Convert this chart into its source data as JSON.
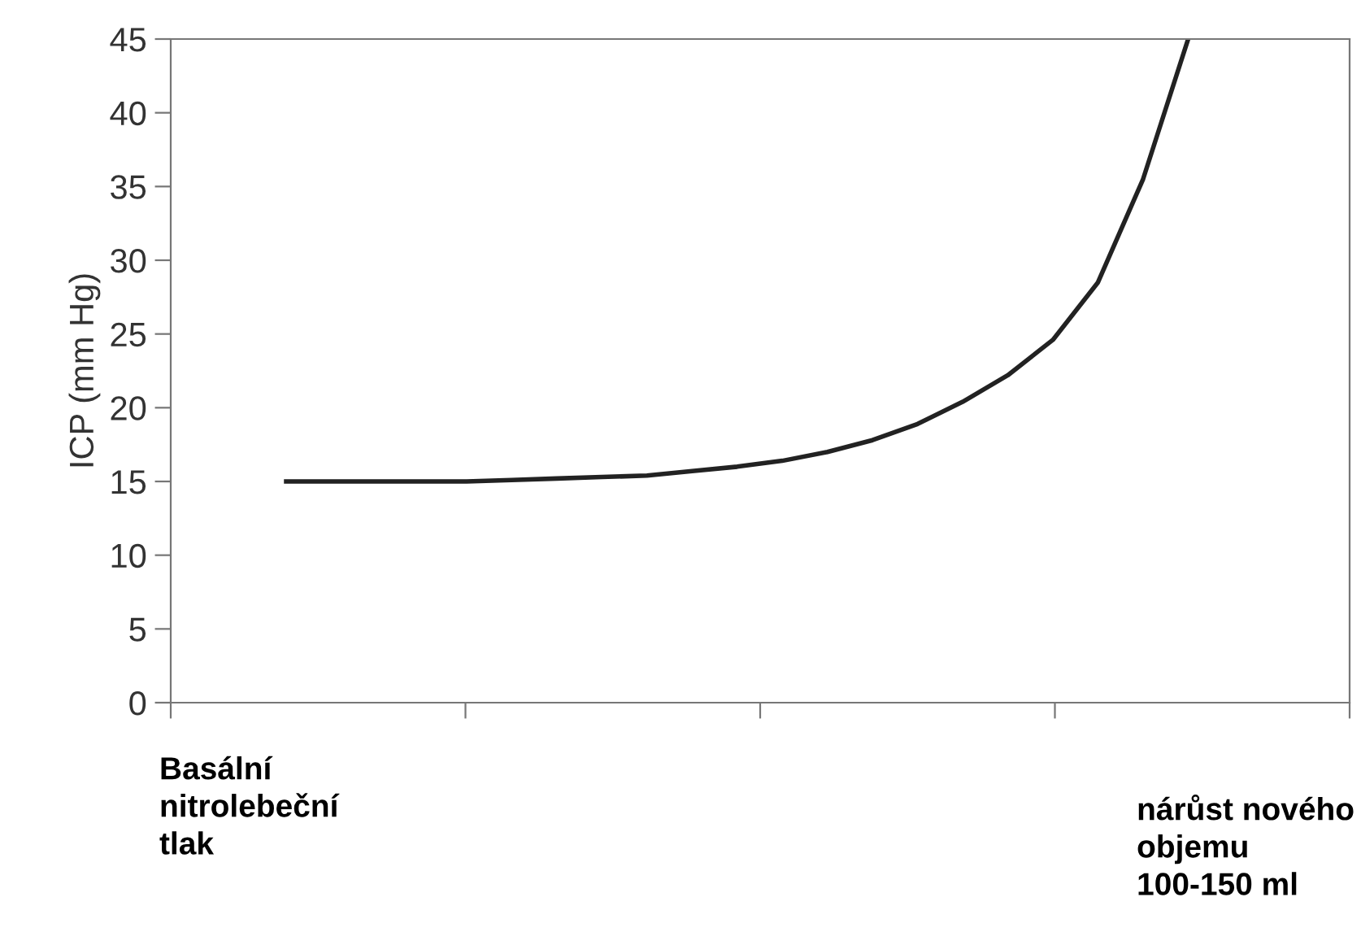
{
  "chart_data": {
    "type": "line",
    "ylabel": "ICP (mm Hg)",
    "categories": [
      null,
      null,
      null,
      null,
      null,
      null,
      null,
      null,
      null,
      null,
      null,
      null,
      null,
      null,
      null,
      null,
      null,
      null,
      null,
      null,
      null
    ],
    "series": [
      {
        "color": "#222222",
        "values": [
          15,
          15,
          15,
          15,
          15,
          15.1,
          15.2,
          15.3,
          15.4,
          15.7,
          16,
          16.4,
          17,
          17.8,
          18.9,
          20.4,
          22.2,
          24.6,
          28.5,
          35.5,
          45
        ]
      }
    ],
    "ylim": [
      0,
      45
    ],
    "yticks": [
      0,
      5,
      10,
      15,
      20,
      25,
      30,
      35,
      40,
      45
    ],
    "tick_labels": "y",
    "marker": "none",
    "line_style": "solid",
    "annotations": [
      "Basální\nnitrolebeční\ntlak",
      "nárůst nového\nobjemu\n100-150 ml"
    ]
  }
}
